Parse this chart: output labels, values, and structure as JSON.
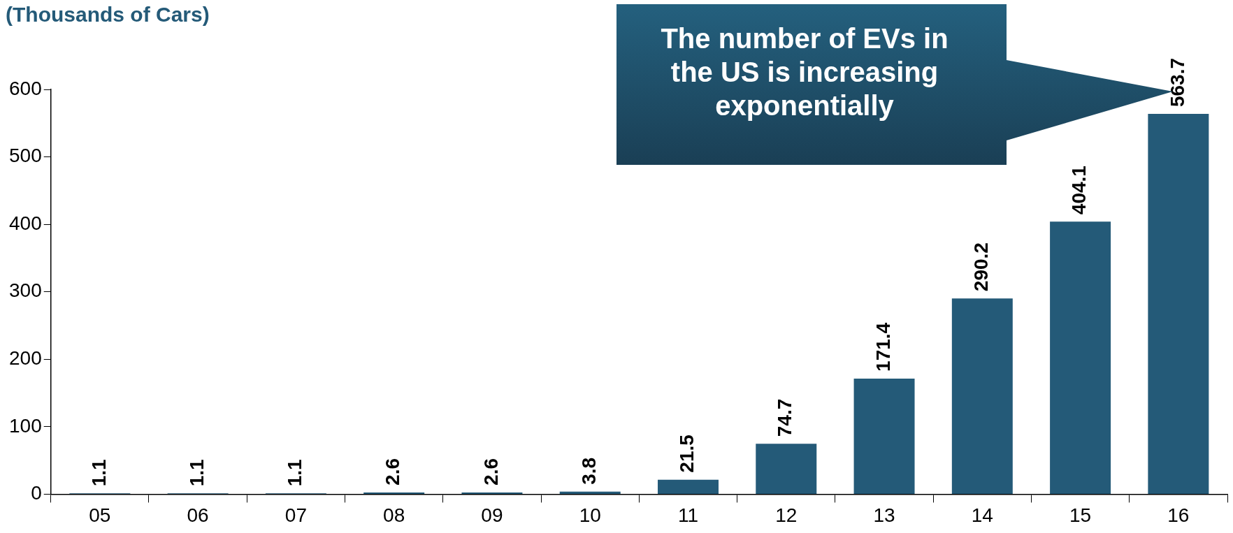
{
  "chart_data": {
    "type": "bar",
    "ylabel": "(Thousands of Cars)",
    "categories": [
      "05",
      "06",
      "07",
      "08",
      "09",
      "10",
      "11",
      "12",
      "13",
      "14",
      "15",
      "16"
    ],
    "values": [
      1.1,
      1.1,
      1.1,
      2.6,
      2.6,
      3.8,
      21.5,
      74.7,
      171.4,
      290.2,
      404.1,
      563.7
    ],
    "color": "#245a78",
    "ylim": [
      0,
      600
    ],
    "yticks": [
      0,
      100,
      200,
      300,
      400,
      500,
      600
    ],
    "grid": false,
    "data_labels": true,
    "annotations": [
      "The number of EVs in the US is increasing exponentially"
    ]
  }
}
